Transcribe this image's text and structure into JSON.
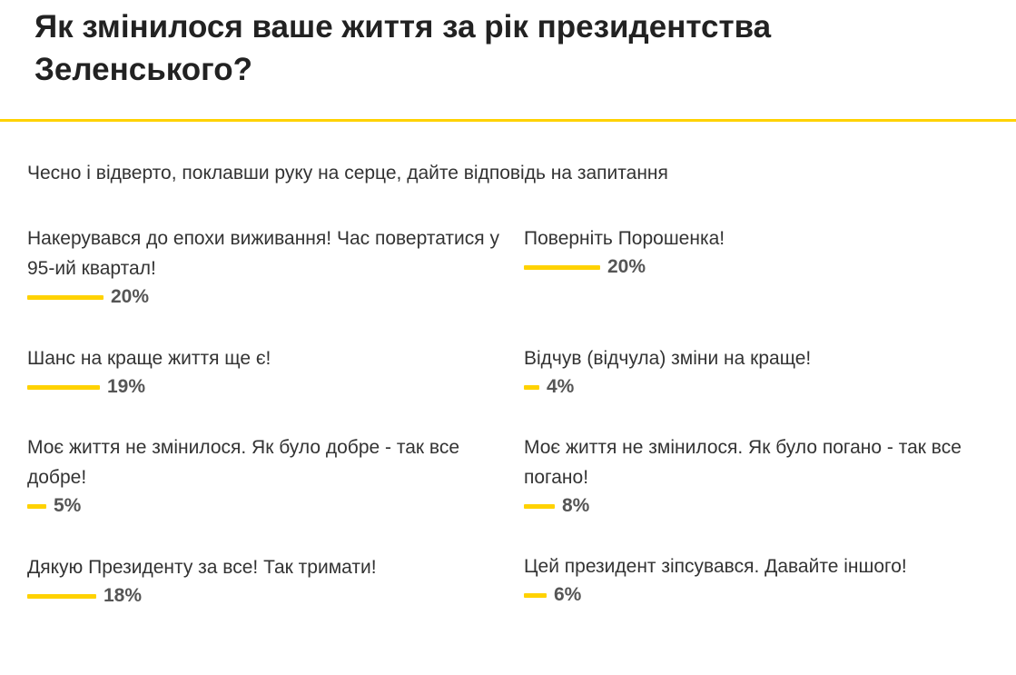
{
  "poll": {
    "title": "Як змінилося ваше життя за рік президентства Зеленського?",
    "subtitle": "Чесно і відверто, поклавши руку на серце, дайте відповідь на запитання",
    "accent_color": "#ffd200",
    "options": [
      {
        "label": "Накерувався до епохи виживання! Час повертатися у 95-ий квартал!",
        "percent": 20,
        "percent_label": "20%"
      },
      {
        "label": "Поверніть Порошенка!",
        "percent": 20,
        "percent_label": "20%"
      },
      {
        "label": "Шанс на краще життя ще є!",
        "percent": 19,
        "percent_label": "19%"
      },
      {
        "label": "Відчув (відчула) зміни на краще!",
        "percent": 4,
        "percent_label": "4%"
      },
      {
        "label": "Моє життя не змінилося. Як було добре - так все добре!",
        "percent": 5,
        "percent_label": "5%"
      },
      {
        "label": "Моє життя не змінилося. Як було погано - так все погано!",
        "percent": 8,
        "percent_label": "8%"
      },
      {
        "label": "Дякую Президенту за все! Так тримати!",
        "percent": 18,
        "percent_label": "18%"
      },
      {
        "label": "Цей президент зіпсувався. Давайте іншого!",
        "percent": 6,
        "percent_label": "6%"
      }
    ]
  }
}
